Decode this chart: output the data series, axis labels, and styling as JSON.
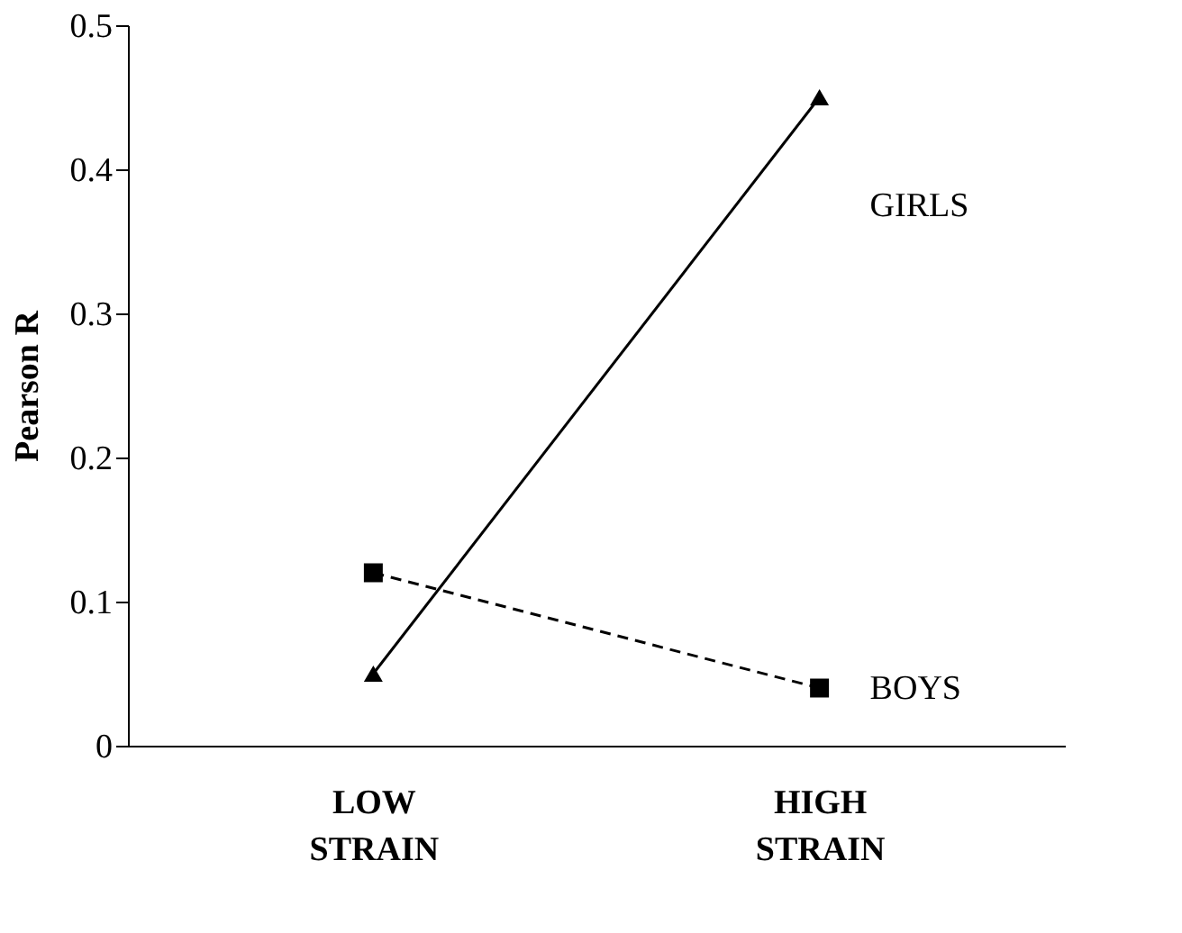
{
  "chart_data": {
    "type": "line",
    "ylabel": "Pearson R",
    "categories": [
      "LOW STRAIN",
      "HIGH STRAIN"
    ],
    "series": [
      {
        "name": "GIRLS",
        "color": "#000000",
        "values": [
          0.05,
          0.45
        ],
        "marker": "triangle",
        "line_style": "solid"
      },
      {
        "name": "BOYS",
        "color": "#000000",
        "values": [
          0.12,
          0.04
        ],
        "marker": "square",
        "line_style": "dashed"
      }
    ],
    "ylim": [
      0,
      0.5
    ],
    "yticks": [
      0,
      0.1,
      0.2,
      0.3,
      0.4,
      0.5
    ],
    "grid": false,
    "legend": false
  }
}
